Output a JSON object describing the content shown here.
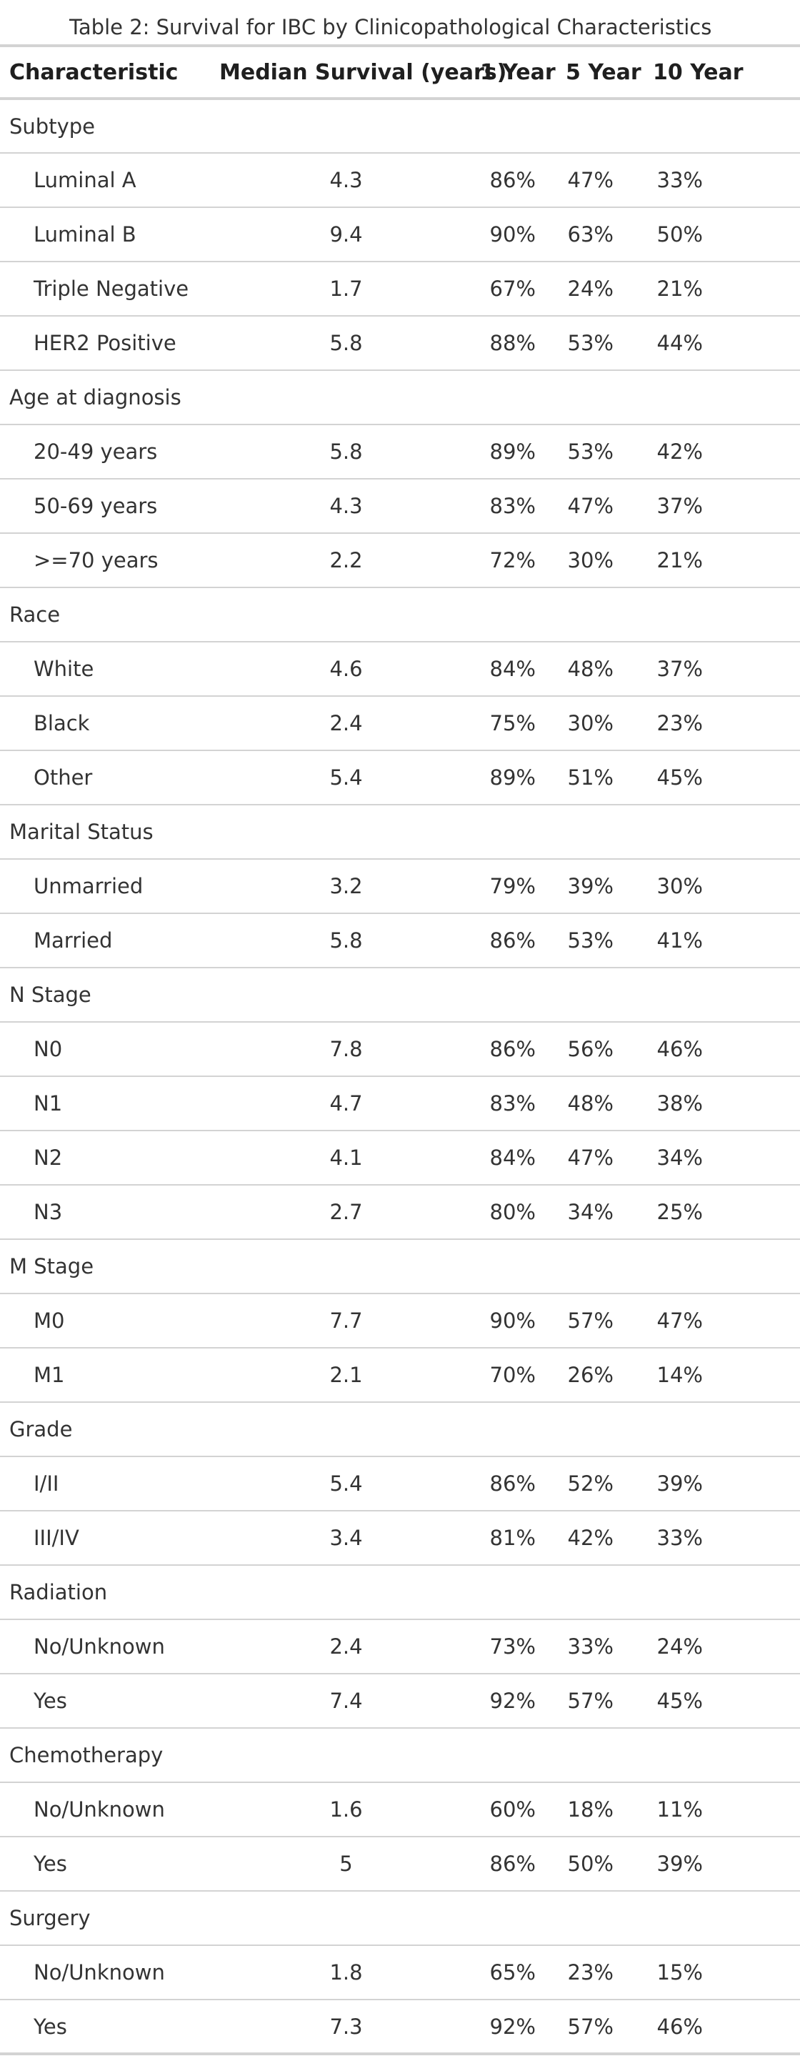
{
  "caption": "Table 2: Survival for IBC by Clinicopathological Characteristics",
  "columns": [
    "Characteristic",
    "Median Survival (years)",
    "1 Year",
    "5 Year",
    "10 Year"
  ],
  "groups": [
    {
      "name": "Subtype",
      "rows": [
        [
          "Luminal A",
          "4.3",
          "86%",
          "47%",
          "33%"
        ],
        [
          "Luminal B",
          "9.4",
          "90%",
          "63%",
          "50%"
        ],
        [
          "Triple Negative",
          "1.7",
          "67%",
          "24%",
          "21%"
        ],
        [
          "HER2 Positive",
          "5.8",
          "88%",
          "53%",
          "44%"
        ]
      ]
    },
    {
      "name": "Age at diagnosis",
      "rows": [
        [
          "20-49 years",
          "5.8",
          "89%",
          "53%",
          "42%"
        ],
        [
          "50-69 years",
          "4.3",
          "83%",
          "47%",
          "37%"
        ],
        [
          ">=70 years",
          "2.2",
          "72%",
          "30%",
          "21%"
        ]
      ]
    },
    {
      "name": "Race",
      "rows": [
        [
          "White",
          "4.6",
          "84%",
          "48%",
          "37%"
        ],
        [
          "Black",
          "2.4",
          "75%",
          "30%",
          "23%"
        ],
        [
          "Other",
          "5.4",
          "89%",
          "51%",
          "45%"
        ]
      ]
    },
    {
      "name": "Marital Status",
      "rows": [
        [
          "Unmarried",
          "3.2",
          "79%",
          "39%",
          "30%"
        ],
        [
          "Married",
          "5.8",
          "86%",
          "53%",
          "41%"
        ]
      ]
    },
    {
      "name": "N Stage",
      "rows": [
        [
          "N0",
          "7.8",
          "86%",
          "56%",
          "46%"
        ],
        [
          "N1",
          "4.7",
          "83%",
          "48%",
          "38%"
        ],
        [
          "N2",
          "4.1",
          "84%",
          "47%",
          "34%"
        ],
        [
          "N3",
          "2.7",
          "80%",
          "34%",
          "25%"
        ]
      ]
    },
    {
      "name": "M Stage",
      "rows": [
        [
          "M0",
          "7.7",
          "90%",
          "57%",
          "47%"
        ],
        [
          "M1",
          "2.1",
          "70%",
          "26%",
          "14%"
        ]
      ]
    },
    {
      "name": "Grade",
      "rows": [
        [
          "I/II",
          "5.4",
          "86%",
          "52%",
          "39%"
        ],
        [
          "III/IV",
          "3.4",
          "81%",
          "42%",
          "33%"
        ]
      ]
    },
    {
      "name": "Radiation",
      "rows": [
        [
          "No/Unknown",
          "2.4",
          "73%",
          "33%",
          "24%"
        ],
        [
          "Yes",
          "7.4",
          "92%",
          "57%",
          "45%"
        ]
      ]
    },
    {
      "name": "Chemotherapy",
      "rows": [
        [
          "No/Unknown",
          "1.6",
          "60%",
          "18%",
          "11%"
        ],
        [
          "Yes",
          "5",
          "86%",
          "50%",
          "39%"
        ]
      ]
    },
    {
      "name": "Surgery",
      "rows": [
        [
          "No/Unknown",
          "1.8",
          "65%",
          "23%",
          "15%"
        ],
        [
          "Yes",
          "7.3",
          "92%",
          "57%",
          "46%"
        ]
      ]
    }
  ]
}
